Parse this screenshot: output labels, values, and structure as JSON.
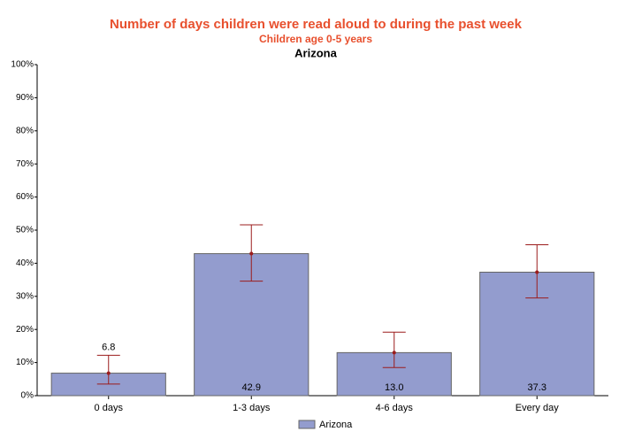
{
  "chart_data": {
    "type": "bar",
    "title": "Number of days children were read aloud to during the past week",
    "subtitle": "Children age 0-5 years",
    "location": "Arizona",
    "categories": [
      "0 days",
      "1-3 days",
      "4-6 days",
      "Every day"
    ],
    "series": [
      {
        "name": "Arizona",
        "color": "#939cce",
        "values": [
          6.8,
          42.9,
          13.0,
          37.3
        ],
        "value_labels": [
          "6.8",
          "42.9",
          "13.0",
          "37.3"
        ],
        "ci_lower": [
          3.5,
          34.6,
          8.5,
          29.5
        ],
        "ci_upper": [
          12.2,
          51.6,
          19.2,
          45.6
        ],
        "error_color": "#9b1c1c"
      }
    ],
    "ylim": [
      0,
      100
    ],
    "yticks": [
      {
        "value": 0,
        "label": "0%"
      },
      {
        "value": 10,
        "label": "10%"
      },
      {
        "value": 20,
        "label": "20%"
      },
      {
        "value": 30,
        "label": "30%"
      },
      {
        "value": 40,
        "label": "40%"
      },
      {
        "value": 50,
        "label": "50%"
      },
      {
        "value": 60,
        "label": "60%"
      },
      {
        "value": 70,
        "label": "70%"
      },
      {
        "value": 80,
        "label": "80%"
      },
      {
        "value": 90,
        "label": "90%"
      },
      {
        "value": 100,
        "label": "100%"
      }
    ],
    "grid": false
  }
}
